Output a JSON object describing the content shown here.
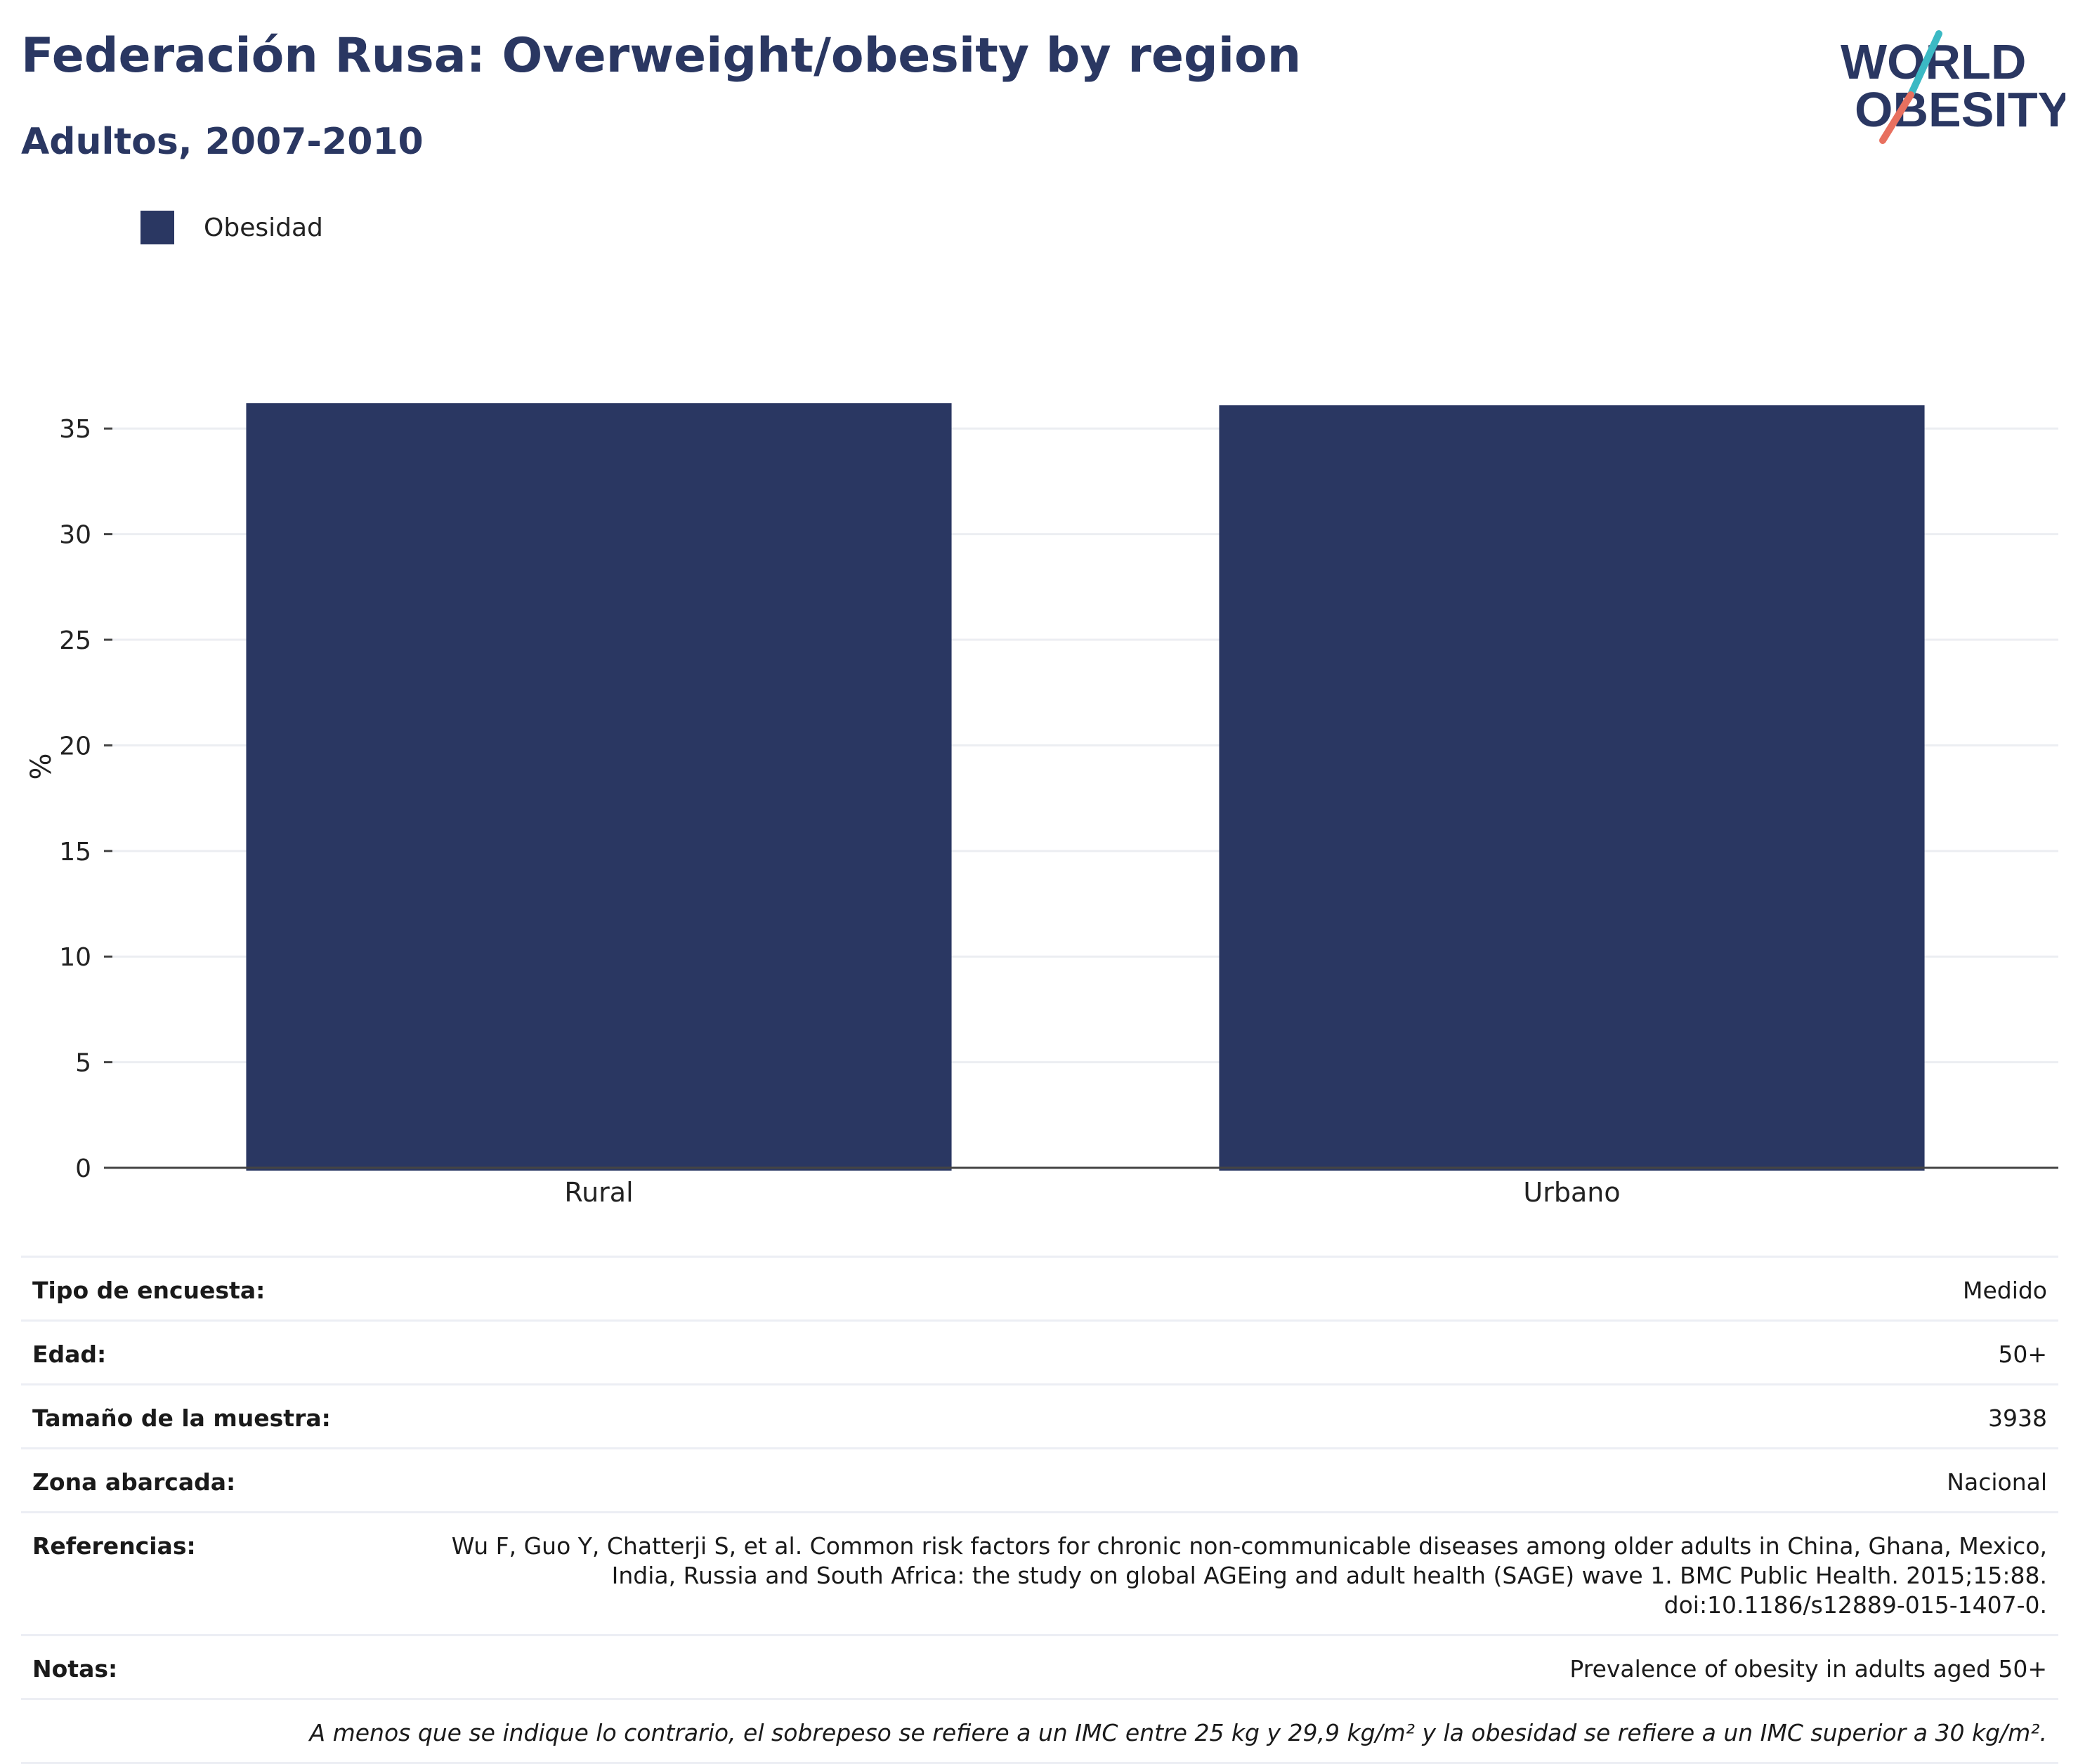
{
  "header": {
    "title": "Federación Rusa: Overweight/obesity by region",
    "subtitle": "Adultos, 2007-2010"
  },
  "logo": {
    "line1": "WORLD",
    "line2": "OBESITY"
  },
  "colors": {
    "primary": "#2a3762",
    "logo_teal": "#3bb9c4",
    "logo_coral": "#e8705f"
  },
  "chart_data": {
    "type": "bar",
    "categories": [
      "Rural",
      "Urbano"
    ],
    "series": [
      {
        "name": "Obesidad",
        "values": [
          36.2,
          36.1
        ],
        "color": "#2a3762"
      }
    ],
    "ylabel": "%",
    "ylim": [
      0,
      38
    ],
    "yticks": [
      0,
      5,
      10,
      15,
      20,
      25,
      30,
      35
    ],
    "grid": true,
    "legend_position": "top-left"
  },
  "meta": [
    {
      "key": "Tipo de encuesta:",
      "value": "Medido"
    },
    {
      "key": "Edad:",
      "value": "50+"
    },
    {
      "key": "Tamaño de la muestra:",
      "value": "3938"
    },
    {
      "key": "Zona abarcada:",
      "value": "Nacional"
    },
    {
      "key": "Referencias:",
      "value": "Wu F, Guo Y, Chatterji S, et al. Common risk factors for chronic non-communicable diseases among older adults in China, Ghana, Mexico, India, Russia and South Africa: the study on global AGEing and adult health (SAGE) wave 1. BMC Public Health. 2015;15:88. doi:10.1186/s12889-015-1407-0."
    },
    {
      "key": "Notas:",
      "value": "Prevalence of obesity in adults aged 50+"
    }
  ],
  "footnote": "A menos que se indique lo contrario, el sobrepeso se refiere a un IMC entre 25 kg y 29,9 kg/m² y la obesidad se refiere a un IMC superior a 30 kg/m²."
}
